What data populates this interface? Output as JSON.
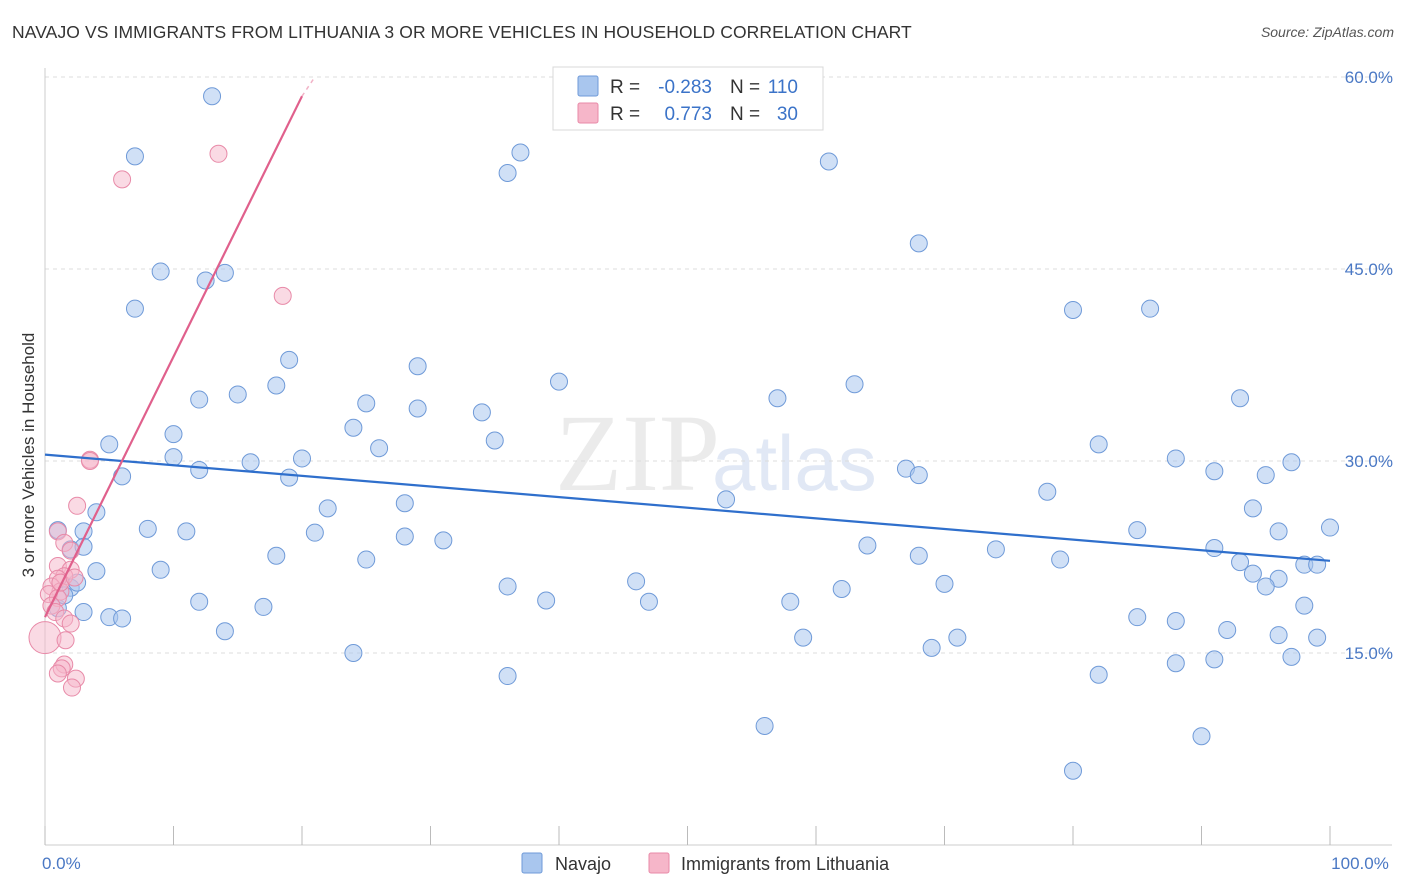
{
  "title": "NAVAJO VS IMMIGRANTS FROM LITHUANIA 3 OR MORE VEHICLES IN HOUSEHOLD CORRELATION CHART",
  "source": "Source: ZipAtlas.com",
  "watermark": {
    "zip": "ZIP",
    "atlas": "atlas"
  },
  "colors": {
    "navajo_fill": "#a9c6ee",
    "navajo_stroke": "#6f9ad8",
    "navajo_line": "#2f6fcc",
    "lith_fill": "#f6b6c9",
    "lith_stroke": "#e88aa8",
    "lith_line": "#e0608c",
    "tick_label": "#4a78c4"
  },
  "legend": {
    "rows": [
      {
        "r_label": "R =",
        "r_value": "-0.283",
        "n_label": "N =",
        "n_value": "110"
      },
      {
        "r_label": "R =",
        "r_value": "0.773",
        "n_label": "N =",
        "n_value": "30"
      }
    ]
  },
  "bottom_legend": [
    "Navajo",
    "Immigrants from Lithuania"
  ],
  "chart_data": {
    "type": "scatter",
    "title": "NAVAJO VS IMMIGRANTS FROM LITHUANIA 3 OR MORE VEHICLES IN HOUSEHOLD CORRELATION CHART",
    "xlabel": "",
    "ylabel": "3 or more Vehicles in Household",
    "xlim": [
      0,
      100
    ],
    "ylim": [
      0,
      60
    ],
    "x_tick_labels": [
      {
        "value": 0,
        "label": "0.0%"
      },
      {
        "value": 100,
        "label": "100.0%"
      }
    ],
    "y_tick_labels": [
      {
        "value": 15,
        "label": "15.0%"
      },
      {
        "value": 30,
        "label": "30.0%"
      },
      {
        "value": 45,
        "label": "45.0%"
      },
      {
        "value": 60,
        "label": "60.0%"
      }
    ],
    "series": [
      {
        "name": "Navajo",
        "r": -0.283,
        "n": 110,
        "trend": {
          "x0": 0,
          "y0": 30.5,
          "x1": 100,
          "y1": 22.2
        },
        "points": [
          [
            13,
            58.5
          ],
          [
            7,
            53.8
          ],
          [
            36,
            52.5
          ],
          [
            37,
            54.1
          ],
          [
            61,
            53.4
          ],
          [
            68,
            47
          ],
          [
            9,
            44.8
          ],
          [
            12.5,
            44.1
          ],
          [
            14,
            44.7
          ],
          [
            7,
            41.9
          ],
          [
            80,
            41.8
          ],
          [
            86,
            41.9
          ],
          [
            19,
            37.9
          ],
          [
            29,
            37.4
          ],
          [
            18,
            35.9
          ],
          [
            40,
            36.2
          ],
          [
            63,
            36
          ],
          [
            15,
            35.2
          ],
          [
            12,
            34.8
          ],
          [
            25,
            34.5
          ],
          [
            29,
            34.1
          ],
          [
            57,
            34.9
          ],
          [
            34,
            33.8
          ],
          [
            93,
            34.9
          ],
          [
            24,
            32.6
          ],
          [
            10,
            32.1
          ],
          [
            35,
            31.6
          ],
          [
            5,
            31.3
          ],
          [
            26,
            31
          ],
          [
            82,
            31.3
          ],
          [
            10,
            30.3
          ],
          [
            16,
            29.9
          ],
          [
            20,
            30.2
          ],
          [
            88,
            30.2
          ],
          [
            12,
            29.3
          ],
          [
            6,
            28.8
          ],
          [
            67,
            29.4
          ],
          [
            91,
            29.2
          ],
          [
            19,
            28.7
          ],
          [
            68,
            28.9
          ],
          [
            95,
            28.9
          ],
          [
            97,
            29.9
          ],
          [
            78,
            27.6
          ],
          [
            53,
            27
          ],
          [
            4,
            26
          ],
          [
            22,
            26.3
          ],
          [
            28,
            26.7
          ],
          [
            94,
            26.3
          ],
          [
            1,
            24.6
          ],
          [
            3,
            24.5
          ],
          [
            8,
            24.7
          ],
          [
            11,
            24.5
          ],
          [
            21,
            24.4
          ],
          [
            28,
            24.1
          ],
          [
            31,
            23.8
          ],
          [
            85,
            24.6
          ],
          [
            96,
            24.5
          ],
          [
            2,
            23.1
          ],
          [
            64,
            23.4
          ],
          [
            74,
            23.1
          ],
          [
            91,
            23.2
          ],
          [
            18,
            22.6
          ],
          [
            68,
            22.6
          ],
          [
            25,
            22.3
          ],
          [
            79,
            22.3
          ],
          [
            93,
            22.1
          ],
          [
            98,
            21.9
          ],
          [
            99,
            21.9
          ],
          [
            4,
            21.4
          ],
          [
            9,
            21.5
          ],
          [
            94,
            21.2
          ],
          [
            96,
            20.8
          ],
          [
            2,
            20.1
          ],
          [
            36,
            20.2
          ],
          [
            46,
            20.6
          ],
          [
            62,
            20
          ],
          [
            70,
            20.4
          ],
          [
            95,
            20.2
          ],
          [
            47,
            19
          ],
          [
            58,
            19
          ],
          [
            12,
            19
          ],
          [
            17,
            18.6
          ],
          [
            39,
            19.1
          ],
          [
            98,
            18.7
          ],
          [
            5,
            17.8
          ],
          [
            6,
            17.7
          ],
          [
            85,
            17.8
          ],
          [
            88,
            17.5
          ],
          [
            14,
            16.7
          ],
          [
            59,
            16.2
          ],
          [
            71,
            16.2
          ],
          [
            92,
            16.8
          ],
          [
            96,
            16.4
          ],
          [
            69,
            15.4
          ],
          [
            24,
            15
          ],
          [
            91,
            14.5
          ],
          [
            88,
            14.2
          ],
          [
            82,
            13.3
          ],
          [
            36,
            13.2
          ],
          [
            56,
            9.3
          ],
          [
            90,
            8.5
          ],
          [
            80,
            5.8
          ],
          [
            97,
            14.7
          ],
          [
            1,
            18.5
          ],
          [
            3,
            18.2
          ],
          [
            1.5,
            19.5
          ],
          [
            2.5,
            20.5
          ],
          [
            100,
            24.8
          ],
          [
            99,
            16.2
          ],
          [
            3,
            23.3
          ]
        ]
      },
      {
        "name": "Immigrants from Lithuania",
        "r": 0.773,
        "n": 30,
        "trend": {
          "x0": 0,
          "y0": 17.8,
          "x1": 20,
          "y1": 58.5,
          "dash_to_x": 21,
          "dash_to_y": 60
        },
        "points": [
          [
            13.5,
            54
          ],
          [
            6,
            52
          ],
          [
            18.5,
            42.9
          ],
          [
            3.5,
            30.1
          ],
          [
            2.5,
            26.5
          ],
          [
            1,
            24.5
          ],
          [
            1.5,
            23.6
          ],
          [
            2,
            23
          ],
          [
            1,
            21.8
          ],
          [
            2,
            21.5
          ],
          [
            1.5,
            21
          ],
          [
            1,
            20.8
          ],
          [
            0.5,
            20.2
          ],
          [
            1.2,
            19.8
          ],
          [
            0.3,
            19.6
          ],
          [
            1,
            19.3
          ],
          [
            0.5,
            18.7
          ],
          [
            0.8,
            18.2
          ],
          [
            1.5,
            17.7
          ],
          [
            2,
            17.3
          ],
          [
            0,
            16.2
          ],
          [
            1.6,
            16
          ],
          [
            1.5,
            14.1
          ],
          [
            1.3,
            13.8
          ],
          [
            1,
            13.4
          ],
          [
            2.4,
            13
          ],
          [
            2.1,
            12.3
          ],
          [
            1.2,
            20.5
          ],
          [
            3.5,
            30
          ],
          [
            2.3,
            20.9
          ]
        ]
      }
    ]
  }
}
